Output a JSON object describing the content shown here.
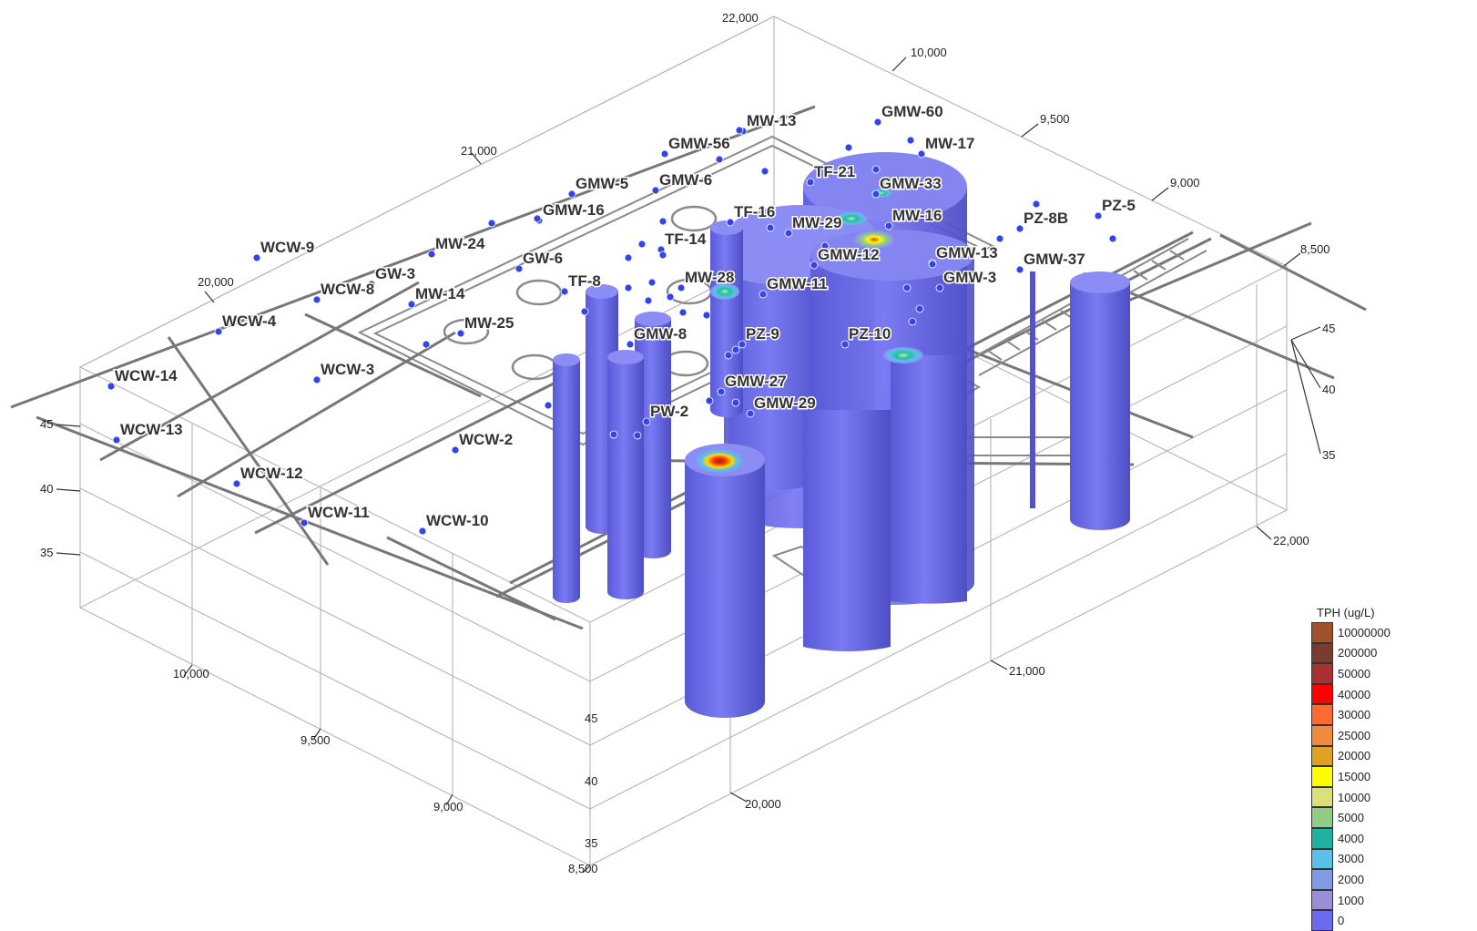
{
  "axes": {
    "top_axis_ticks": [
      "20,000",
      "21,000",
      "22,000"
    ],
    "right_top_ticks": [
      "10,000",
      "9,500",
      "9,000",
      "8,500"
    ],
    "right_front_elev_ticks": [
      "45",
      "40",
      "35"
    ],
    "left_elev_ticks": [
      "45",
      "40",
      "35"
    ],
    "front_elev_ticks": [
      "45",
      "40",
      "35"
    ],
    "bottom_left_ticks": [
      "10,000",
      "9,500",
      "9,000",
      "8,500"
    ],
    "bottom_right_ticks": [
      "20,000",
      "21,000",
      "22,000"
    ]
  },
  "wells": [
    "WCW-9",
    "WCW-8",
    "WCW-4",
    "WCW-14",
    "WCW-13",
    "WCW-3",
    "WCW-12",
    "WCW-11",
    "WCW-10",
    "WCW-2",
    "GW-3",
    "GW-6",
    "MW-24",
    "MW-14",
    "MW-25",
    "GMW-16",
    "GMW-5",
    "GMW-6",
    "GMW-56",
    "MW-13",
    "GMW-60",
    "MW-17",
    "TF-21",
    "GMW-33",
    "TF-16",
    "MW-29",
    "MW-16",
    "TF-14",
    "TF-8",
    "MW-28",
    "GMW-11",
    "GMW-12",
    "GMW-13",
    "GMW-3",
    "GMW-8",
    "PZ-9",
    "PZ-10",
    "GMW-27",
    "GMW-29",
    "PW-2",
    "PZ-8B",
    "PZ-5",
    "GMW-37"
  ],
  "legend": {
    "title": "TPH (ug/L)",
    "items": [
      {
        "label": "10000000",
        "color": "#a0522d"
      },
      {
        "label": "200000",
        "color": "#7b3b2e"
      },
      {
        "label": "50000",
        "color": "#a83232"
      },
      {
        "label": "40000",
        "color": "#ff0000"
      },
      {
        "label": "30000",
        "color": "#ff6a33"
      },
      {
        "label": "25000",
        "color": "#f08a3c"
      },
      {
        "label": "20000",
        "color": "#e0a020"
      },
      {
        "label": "15000",
        "color": "#ffff00"
      },
      {
        "label": "10000",
        "color": "#dce07a"
      },
      {
        "label": "5000",
        "color": "#90cc88"
      },
      {
        "label": "4000",
        "color": "#20b2a0"
      },
      {
        "label": "3000",
        "color": "#5bc0e8"
      },
      {
        "label": "2000",
        "color": "#7f9ae6"
      },
      {
        "label": "1000",
        "color": "#9a8ed8"
      },
      {
        "label": "0",
        "color": "#6b6bef"
      }
    ]
  },
  "colors": {
    "plume": "#6b6bef",
    "plume_dark": "#5252cf",
    "plume_light": "#8c8cf5",
    "well_marker": "#3344ee",
    "hotspot_red": "#ff0000",
    "hotspot_yellow": "#ffff00",
    "hotspot_cyan": "#5bc0e8"
  }
}
